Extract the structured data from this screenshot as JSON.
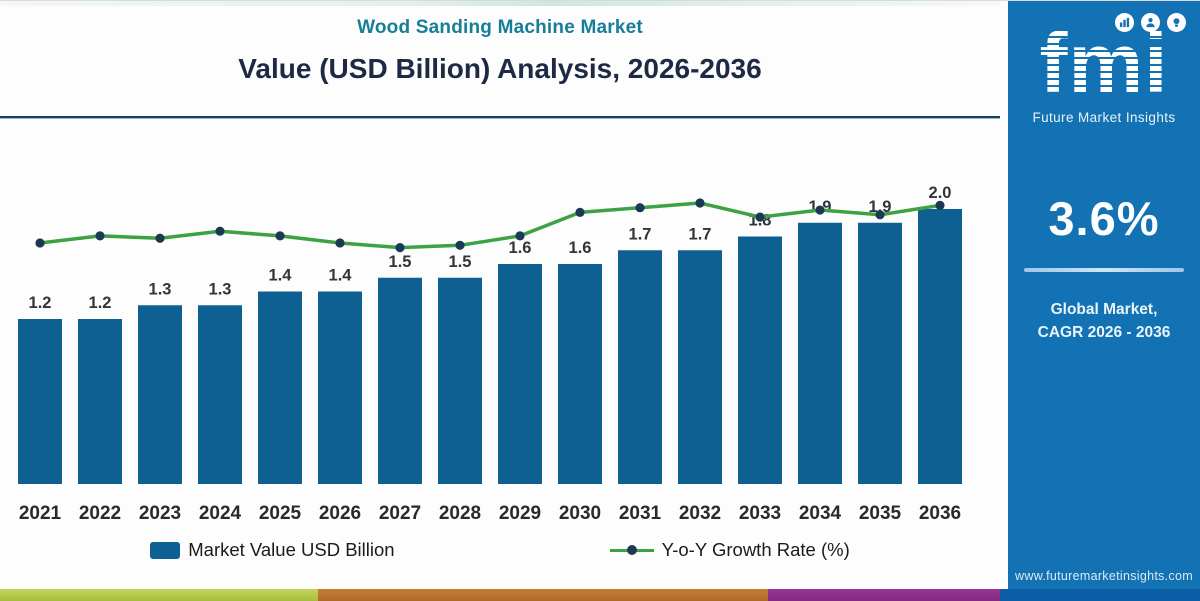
{
  "header": {
    "title": "Wood Sanding Machine Market",
    "subtitle": "Value (USD Billion) Analysis, 2026-2036"
  },
  "chart_data": {
    "type": "bar",
    "title": "Wood Sanding Machine Market",
    "subtitle": "Value (USD Billion) Analysis, 2026-2036",
    "categories": [
      "2021",
      "2022",
      "2023",
      "2024",
      "2025",
      "2026",
      "2027",
      "2028",
      "2029",
      "2030",
      "2031",
      "2032",
      "2033",
      "2034",
      "2035",
      "2036"
    ],
    "series": [
      {
        "name": "Market Value USD Billion",
        "type": "bar",
        "values": [
          1.2,
          1.2,
          1.3,
          1.3,
          1.4,
          1.4,
          1.5,
          1.5,
          1.6,
          1.6,
          1.7,
          1.7,
          1.8,
          1.9,
          1.9,
          2.0
        ],
        "data_labels": [
          "1.2",
          "1.2",
          "1.3",
          "1.3",
          "1.4",
          "1.4",
          "1.5",
          "1.5",
          "1.6",
          "1.6",
          "1.7",
          "1.7",
          "1.8",
          "1.9",
          "1.9",
          "2.0"
        ],
        "color": "#0e6092"
      },
      {
        "name": "Y-o-Y Growth Rate (%)",
        "type": "line",
        "values_estimated": true,
        "values": [
          3.15,
          3.3,
          3.25,
          3.4,
          3.3,
          3.15,
          3.05,
          3.1,
          3.3,
          3.8,
          3.9,
          4.0,
          3.7,
          3.85,
          3.75,
          3.95
        ],
        "color": "#3ea244",
        "marker_color": "#1b3a52"
      }
    ],
    "xlabel": "",
    "ylabel": "",
    "ylim": [
      0,
      2.4
    ],
    "grid": false,
    "legend_position": "bottom"
  },
  "legend": {
    "bar_label": "Market Value USD Billion",
    "line_label": "Y-o-Y Growth Rate (%)"
  },
  "sidebar": {
    "logo_text": "fmi",
    "logo_subtext": "Future Market Insights",
    "logo_icons": [
      "chart-icon",
      "person-icon",
      "bulb-icon"
    ],
    "cagr_value": "3.6%",
    "cagr_caption_line1": "Global Market,",
    "cagr_caption_line2": "CAGR 2026 - 2036",
    "website": "www.futuremarketinsights.com"
  },
  "colors": {
    "title_teal": "#177e97",
    "subtitle_navy": "#1e2a44",
    "bar_blue": "#0e6092",
    "line_green": "#3ea244",
    "marker_navy": "#1b3a52",
    "sidebar_blue": "#1372b4",
    "sidebar_footer_blue": "#0d5ca6",
    "bottom_bar_green": "#b2c44c",
    "bottom_bar_orange": "#bc7030",
    "bottom_bar_purple": "#8e2d8f"
  }
}
